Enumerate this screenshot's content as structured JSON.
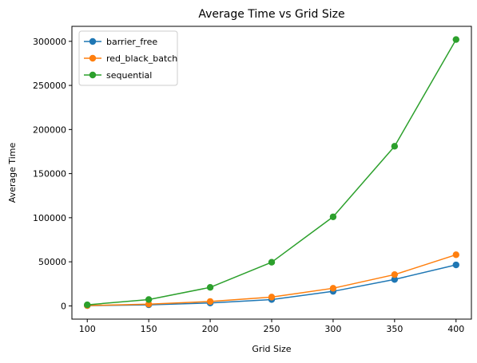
{
  "chart_data": {
    "type": "line",
    "title": "Average Time vs Grid Size",
    "xlabel": "Grid Size",
    "ylabel": "Average Time",
    "x": [
      100,
      150,
      200,
      250,
      300,
      350,
      400
    ],
    "xlim": [
      87.5,
      412.5
    ],
    "ylim": [
      -15000,
      317000
    ],
    "x_ticks": [
      100,
      150,
      200,
      250,
      300,
      350,
      400
    ],
    "y_ticks": [
      0,
      50000,
      100000,
      150000,
      200000,
      250000,
      300000
    ],
    "grid": false,
    "legend_position": "top-left",
    "series": [
      {
        "name": "barrier_free",
        "color": "#1f77b4",
        "values": [
          300,
          1200,
          3300,
          7200,
          16500,
          30000,
          46500
        ]
      },
      {
        "name": "red_black_batch",
        "color": "#ff7f0e",
        "values": [
          400,
          2000,
          5000,
          10000,
          20000,
          35500,
          58000
        ]
      },
      {
        "name": "sequential",
        "color": "#2ca02c",
        "values": [
          1200,
          7200,
          21000,
          49500,
          101000,
          181000,
          302000
        ]
      }
    ]
  }
}
